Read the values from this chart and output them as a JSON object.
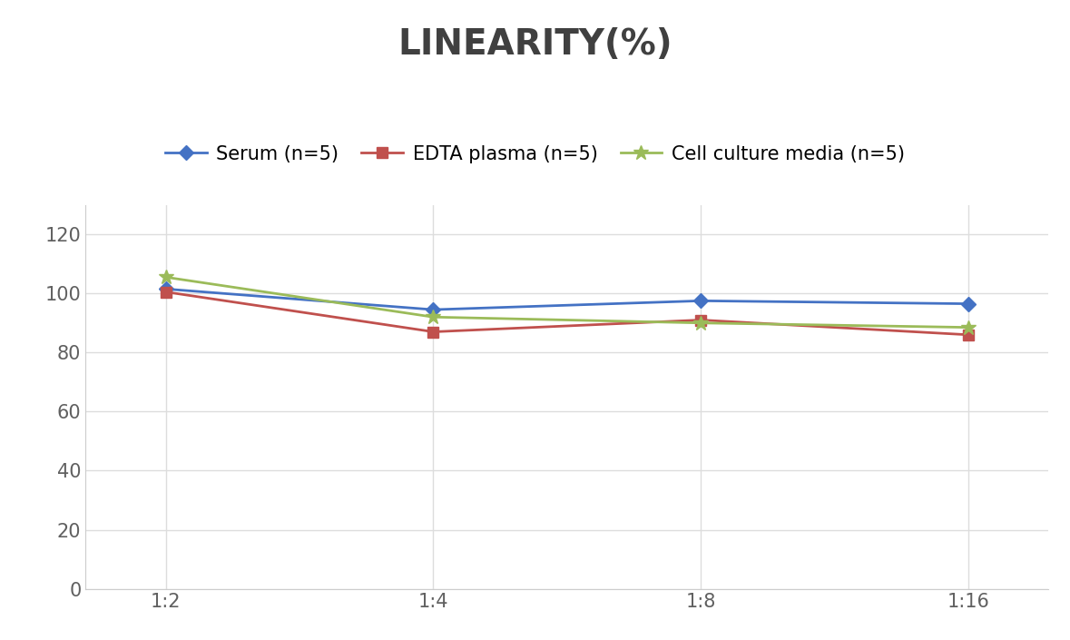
{
  "title": "LINEARITY(%)",
  "x_labels": [
    "1:2",
    "1:4",
    "1:8",
    "1:16"
  ],
  "x_positions": [
    0,
    1,
    2,
    3
  ],
  "series": [
    {
      "label": "Serum (n=5)",
      "values": [
        101.5,
        94.5,
        97.5,
        96.5
      ],
      "color": "#4472C4",
      "marker": "D",
      "markersize": 8
    },
    {
      "label": "EDTA plasma (n=5)",
      "values": [
        100.5,
        87.0,
        91.0,
        86.0
      ],
      "color": "#C0504D",
      "marker": "s",
      "markersize": 8
    },
    {
      "label": "Cell culture media (n=5)",
      "values": [
        105.5,
        92.0,
        90.0,
        88.5
      ],
      "color": "#9BBB59",
      "marker": "*",
      "markersize": 12
    }
  ],
  "ylim": [
    0,
    130
  ],
  "yticks": [
    0,
    20,
    40,
    60,
    80,
    100,
    120
  ],
  "background_color": "#FFFFFF",
  "grid_color": "#DDDDDD",
  "title_fontsize": 28,
  "tick_fontsize": 15,
  "legend_fontsize": 15,
  "title_color": "#404040"
}
